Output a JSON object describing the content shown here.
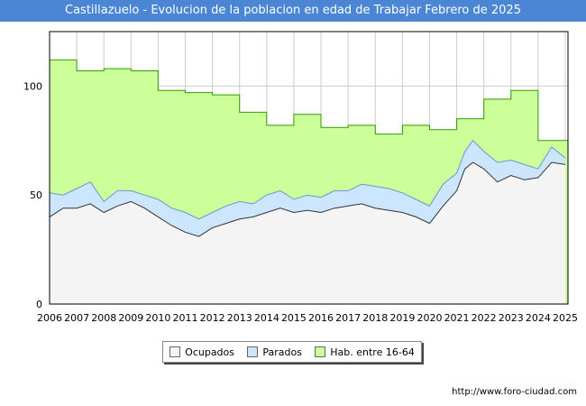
{
  "chart_data": {
    "type": "area",
    "title": "Castillazuelo - Evolucion de la poblacion en edad de Trabajar Febrero de 2025",
    "xlabel": "",
    "ylabel": "",
    "xlim": [
      2006,
      2025.1
    ],
    "ylim": [
      0,
      125
    ],
    "yticks": [
      0,
      50,
      100
    ],
    "xticks": [
      "2006",
      "2007",
      "2008",
      "2009",
      "2010",
      "2011",
      "2012",
      "2013",
      "2014",
      "2015",
      "2016",
      "2017",
      "2018",
      "2019",
      "2020",
      "2021",
      "2022",
      "2023",
      "2024",
      "2025"
    ],
    "grid": true,
    "legend_position": "bottom",
    "series": [
      {
        "name": "Hab. entre 16-64",
        "color": "#ccff99",
        "line": "#339900",
        "step": true,
        "x": [
          2006,
          2007,
          2008,
          2009,
          2010,
          2011,
          2012,
          2013,
          2014,
          2015,
          2016,
          2017,
          2018,
          2019,
          2020,
          2021,
          2022,
          2023,
          2024,
          2025
        ],
        "values": [
          112,
          107,
          108,
          107,
          98,
          97,
          96,
          88,
          82,
          87,
          81,
          82,
          78,
          82,
          80,
          85,
          94,
          98,
          75,
          75
        ]
      },
      {
        "name": "Parados",
        "color": "#cce6ff",
        "line": "#6699cc",
        "x": [
          2006,
          2006.5,
          2007,
          2007.5,
          2008,
          2008.5,
          2009,
          2009.5,
          2010,
          2010.5,
          2011,
          2011.5,
          2012,
          2012.5,
          2013,
          2013.5,
          2014,
          2014.5,
          2015,
          2015.5,
          2016,
          2016.5,
          2017,
          2017.5,
          2018,
          2018.5,
          2019,
          2019.5,
          2020,
          2020.5,
          2021,
          2021.3,
          2021.6,
          2022,
          2022.5,
          2023,
          2023.5,
          2024,
          2024.5,
          2025
        ],
        "values": [
          51,
          50,
          53,
          56,
          47,
          52,
          52,
          50,
          48,
          44,
          42,
          39,
          42,
          45,
          47,
          46,
          50,
          52,
          48,
          50,
          49,
          52,
          52,
          55,
          54,
          53,
          51,
          48,
          45,
          55,
          60,
          70,
          75,
          70,
          65,
          66,
          64,
          62,
          72,
          67
        ]
      },
      {
        "name": "Ocupados",
        "color": "#f4f4f4",
        "line": "#333333",
        "x": [
          2006,
          2006.5,
          2007,
          2007.5,
          2008,
          2008.5,
          2009,
          2009.5,
          2010,
          2010.5,
          2011,
          2011.5,
          2012,
          2012.5,
          2013,
          2013.5,
          2014,
          2014.5,
          2015,
          2015.5,
          2016,
          2016.5,
          2017,
          2017.5,
          2018,
          2018.5,
          2019,
          2019.5,
          2020,
          2020.5,
          2021,
          2021.3,
          2021.6,
          2022,
          2022.5,
          2023,
          2023.5,
          2024,
          2024.5,
          2025
        ],
        "values": [
          40,
          44,
          44,
          46,
          42,
          45,
          47,
          44,
          40,
          36,
          33,
          31,
          35,
          37,
          39,
          40,
          42,
          44,
          42,
          43,
          42,
          44,
          45,
          46,
          44,
          43,
          42,
          40,
          37,
          45,
          52,
          62,
          65,
          62,
          56,
          59,
          57,
          58,
          65,
          64
        ]
      }
    ]
  },
  "legend": {
    "items": [
      {
        "label": "Ocupados",
        "color": "#f4f4f4"
      },
      {
        "label": "Parados",
        "color": "#cce6ff"
      },
      {
        "label": "Hab. entre 16-64",
        "color": "#ccff99"
      }
    ]
  },
  "watermark": "http://www.foro-ciudad.com"
}
